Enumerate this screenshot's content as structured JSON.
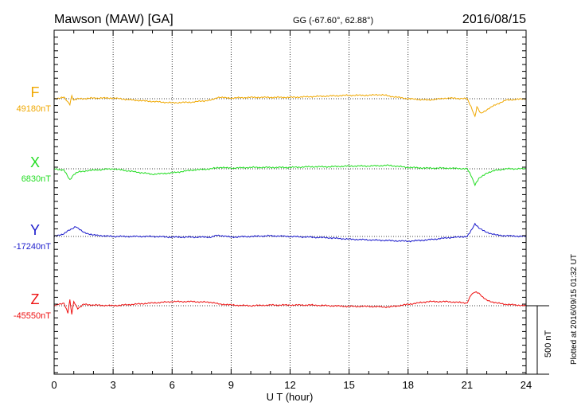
{
  "header": {
    "station": "Mawson (MAW)  [GA]",
    "coords": "GG (-67.60°,  62.88°)",
    "date": "2016/08/15"
  },
  "plotted_note": "Plotted at 2016/09/15 01:32 UT",
  "chart_data": {
    "type": "line",
    "xlabel": "U T (hour)",
    "xlim": [
      0,
      24
    ],
    "x_ticks": [
      "0",
      "3",
      "6",
      "9",
      "12",
      "15",
      "18",
      "21",
      "24"
    ],
    "scale_bar_label": "500 nT",
    "scale_bar_nT": 500,
    "series": [
      {
        "name": "F",
        "baseline_label": "49180nT",
        "color": "#f0a800",
        "x": [
          0,
          0.5,
          0.8,
          0.9,
          1.0,
          1.2,
          1.5,
          2,
          3,
          4,
          5,
          6,
          7,
          8,
          8.3,
          9,
          10,
          11,
          12,
          13,
          14,
          15,
          16,
          16.7,
          17,
          18,
          19,
          20,
          21,
          21.2,
          21.4,
          21.5,
          21.7,
          22,
          22.5,
          23,
          24
        ],
        "y": [
          0,
          10,
          -40,
          20,
          -10,
          0,
          0,
          5,
          5,
          -10,
          -20,
          -30,
          -25,
          -10,
          10,
          5,
          10,
          10,
          10,
          15,
          20,
          25,
          25,
          30,
          20,
          0,
          -10,
          5,
          0,
          -60,
          -130,
          -60,
          -110,
          -80,
          -40,
          -10,
          0
        ]
      },
      {
        "name": "X",
        "baseline_label": "6830nT",
        "color": "#22dd22",
        "x": [
          0,
          0.5,
          0.8,
          1.0,
          1.3,
          2,
          3,
          4,
          5,
          6,
          7,
          8,
          8.3,
          9,
          10,
          11,
          12,
          13,
          14,
          15,
          16,
          17,
          18,
          19,
          20,
          21,
          21.2,
          21.4,
          21.6,
          22,
          22.5,
          23,
          24
        ],
        "y": [
          0,
          -10,
          -80,
          -40,
          -20,
          -10,
          0,
          -20,
          -40,
          -30,
          -10,
          0,
          10,
          5,
          10,
          10,
          10,
          15,
          15,
          20,
          20,
          25,
          10,
          5,
          5,
          0,
          -50,
          -120,
          -70,
          -30,
          -10,
          0,
          0
        ]
      },
      {
        "name": "Y",
        "baseline_label": "-17240nT",
        "color": "#1a1acc",
        "x": [
          0,
          0.5,
          0.8,
          1.1,
          1.5,
          2,
          3,
          4,
          5,
          6,
          7,
          8,
          8.3,
          9,
          10,
          11,
          12,
          13,
          14,
          15,
          16,
          17,
          18,
          19,
          20,
          21,
          21.2,
          21.4,
          21.6,
          22,
          22.5,
          23,
          24
        ],
        "y": [
          0,
          20,
          50,
          70,
          30,
          10,
          0,
          0,
          0,
          -5,
          -5,
          -5,
          10,
          -5,
          0,
          5,
          0,
          -5,
          -10,
          -20,
          -25,
          -30,
          -35,
          -25,
          -10,
          0,
          40,
          90,
          60,
          30,
          10,
          5,
          0
        ]
      },
      {
        "name": "Z",
        "baseline_label": "-45550nT",
        "color": "#ee1111",
        "x": [
          0,
          0.5,
          0.7,
          0.8,
          0.9,
          1.0,
          1.2,
          1.5,
          2,
          3,
          4,
          5,
          6,
          7,
          8,
          8.3,
          9,
          10,
          11,
          12,
          13,
          14,
          15,
          16,
          17,
          18,
          19,
          20,
          21,
          21.2,
          21.4,
          21.6,
          21.8,
          22,
          22.5,
          23,
          24
        ],
        "y": [
          0,
          20,
          -50,
          40,
          -60,
          30,
          -20,
          10,
          5,
          0,
          10,
          20,
          30,
          30,
          25,
          15,
          5,
          0,
          5,
          5,
          5,
          0,
          -5,
          -5,
          -10,
          10,
          30,
          30,
          20,
          80,
          100,
          90,
          60,
          40,
          20,
          10,
          0
        ]
      }
    ]
  }
}
